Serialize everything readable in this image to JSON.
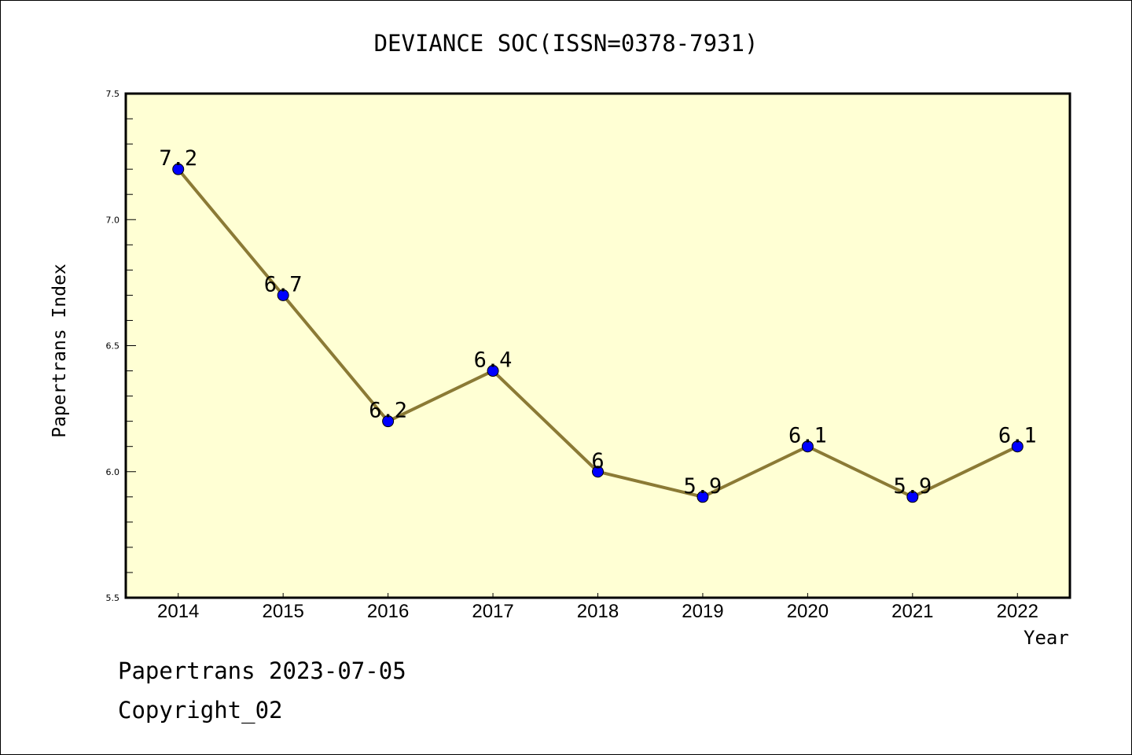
{
  "chart_data": {
    "type": "line",
    "title": "DEVIANCE SOC(ISSN=0378-7931)",
    "xlabel": "Year",
    "ylabel": "Papertrans Index",
    "x": [
      2014,
      2015,
      2016,
      2017,
      2018,
      2019,
      2020,
      2021,
      2022
    ],
    "categories": [
      "2014",
      "2015",
      "2016",
      "2017",
      "2018",
      "2019",
      "2020",
      "2021",
      "2022"
    ],
    "values": [
      7.2,
      6.7,
      6.2,
      6.4,
      6.0,
      5.9,
      6.1,
      5.9,
      6.1
    ],
    "data_labels": [
      "7.2",
      "6.7",
      "6.2",
      "6.4",
      "6",
      "5.9",
      "6.1",
      "5.9",
      "6.1"
    ],
    "ylim": [
      5.5,
      7.5
    ],
    "yticks": [
      "5.5",
      "6.0",
      "6.5",
      "7.0",
      "7.5"
    ],
    "ytick_values": [
      5.5,
      6.0,
      6.5,
      7.0,
      7.5
    ],
    "grid": false,
    "colors": {
      "background": "#ffffd4",
      "line": "#8b7a35",
      "marker": "#0000ff"
    }
  },
  "footer": {
    "line1": "Papertrans 2023-07-05",
    "line2": "Copyright_02"
  }
}
